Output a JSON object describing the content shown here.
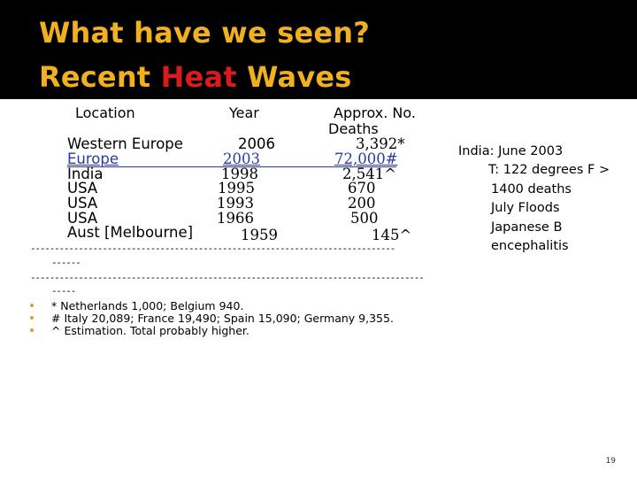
{
  "title": {
    "line1": "What have we seen?",
    "line2_part1": "Recent ",
    "line2_highlight": "Heat",
    "line2_part2": " Waves"
  },
  "table": {
    "headers": {
      "location": "Location",
      "year": "Year",
      "deaths_line1": "Approx. No.",
      "deaths_line2": "Deaths"
    },
    "rows": [
      {
        "location": "Western Europe",
        "year": "2006",
        "deaths": "3,392*"
      },
      {
        "location": "Europe",
        "year": "2003",
        "deaths": "72,000#"
      },
      {
        "location": "India",
        "year": "1998",
        "deaths": "2,541^"
      },
      {
        "location": "USA",
        "year": "1995",
        "deaths": "670"
      },
      {
        "location": "USA",
        "year": "1993",
        "deaths": "200"
      },
      {
        "location": "USA",
        "year": "1966",
        "deaths": "500"
      },
      {
        "location": "Aust [Melbourne]",
        "year": "1959",
        "deaths": "145^"
      }
    ]
  },
  "sidenote": {
    "lines": [
      "India: June 2003",
      "T: 122 degrees F >",
      "1400 deaths",
      "July Floods",
      "Japanese B",
      "encephalitis"
    ]
  },
  "separators": {
    "line1": "----------------------------------------------------------------------------",
    "line1b": "------",
    "line2": "----------------------------------------------------------------------------------",
    "line2b": "-----"
  },
  "footnotes": [
    "* Netherlands 1,000; Belgium 940.",
    "# Italy 20,089; France 19,490; Spain 15,090; Germany 9,355.",
    "^ Estimation. Total probably higher."
  ],
  "page_number": "19",
  "colors": {
    "title": "#f0b020",
    "highlight": "#d81c1c",
    "band": "#000000",
    "bullet": "#d7a12a"
  }
}
